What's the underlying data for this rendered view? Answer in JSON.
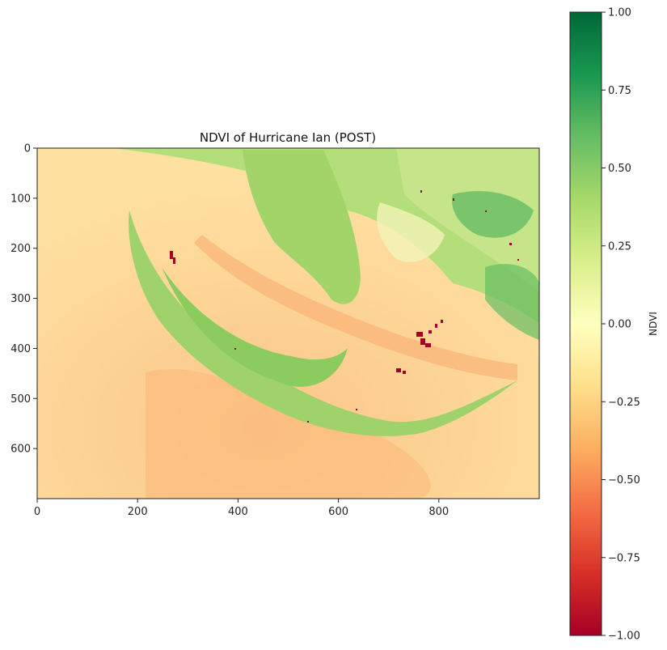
{
  "chart_data": [
    {
      "type": "heatmap",
      "title": "NDVI of Hurricane Ian (POST)",
      "xlabel": "",
      "ylabel": "",
      "xlim": [
        0,
        1000
      ],
      "ylim": [
        700,
        0
      ],
      "x_ticks": [
        0,
        200,
        400,
        600,
        800
      ],
      "x_tick_labels": [
        "0",
        "200",
        "400",
        "600",
        "800"
      ],
      "y_ticks": [
        0,
        100,
        200,
        300,
        400,
        500,
        600
      ],
      "y_tick_labels": [
        "0",
        "100",
        "200",
        "300",
        "400",
        "500",
        "600"
      ],
      "grid": false,
      "image_description": "Satellite NDVI raster of the southwest Florida coast after Hurricane Ian: open water in pale orange (NDVI around -0.2), vegetated islands and mainland in light to medium green (0.2 to 0.6), urban and damaged areas with scattered dark red pixels near x 700-800, y 350-450.",
      "land_regions_ndvi": {
        "water": -0.2,
        "turbid_water": -0.35,
        "islands": 0.4,
        "mainland": 0.35,
        "damaged_urban": -0.9
      }
    },
    {
      "type": "colorbar",
      "label": "NDVI",
      "colormap": "RdYlGn",
      "range": [
        -1.0,
        1.0
      ],
      "ticks": [
        -1.0,
        -0.75,
        -0.5,
        -0.25,
        0.0,
        0.25,
        0.5,
        0.75,
        1.0
      ],
      "tick_labels": [
        "−1.00",
        "−0.75",
        "−0.50",
        "−0.25",
        "0.00",
        "0.25",
        "0.50",
        "0.75",
        "1.00"
      ],
      "colors": [
        "#a50026",
        "#d73027",
        "#f46d43",
        "#fdae61",
        "#fee08b",
        "#ffffbf",
        "#d9ef8b",
        "#a6d96a",
        "#66bd63",
        "#1a9850",
        "#006837"
      ]
    }
  ]
}
